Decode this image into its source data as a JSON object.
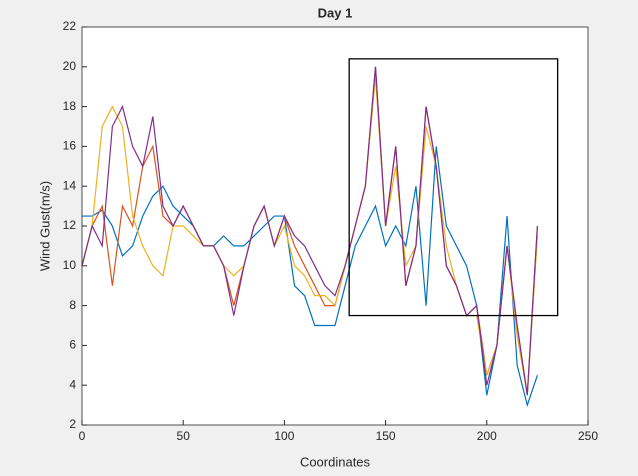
{
  "chart_data": {
    "type": "line",
    "title": "Day 1",
    "xlabel": "Coordinates",
    "ylabel": "Wind Gust(m/s)",
    "x": [
      0,
      5,
      10,
      15,
      20,
      25,
      30,
      35,
      40,
      45,
      50,
      55,
      60,
      65,
      70,
      75,
      80,
      85,
      90,
      95,
      100,
      105,
      110,
      115,
      120,
      125,
      130,
      135,
      140,
      145,
      150,
      155,
      160,
      165,
      170,
      175,
      180,
      185,
      190,
      195,
      200,
      205,
      210,
      215,
      220,
      225
    ],
    "series": [
      {
        "color": "#0072bd",
        "values": [
          12.5,
          12.5,
          12.8,
          12,
          10.5,
          11,
          12.5,
          13.5,
          14,
          13,
          12.5,
          12,
          11,
          11,
          11.5,
          11,
          11,
          11.5,
          12,
          12.5,
          12.5,
          9,
          8.5,
          7,
          7,
          7,
          9,
          11,
          12,
          13,
          11,
          12,
          11,
          14,
          8,
          16,
          12,
          11,
          10,
          8,
          3.5,
          6,
          12.5,
          5,
          3,
          4.5
        ]
      },
      {
        "color": "#d95319",
        "values": [
          10,
          12,
          13,
          9,
          13,
          12,
          15,
          16,
          12.5,
          12,
          13,
          12,
          11,
          11,
          10,
          8,
          10,
          12,
          13,
          11,
          12.5,
          11,
          10,
          9,
          8,
          8,
          10,
          12,
          14,
          20,
          12,
          16,
          9,
          11,
          18,
          15,
          10,
          9,
          7.5,
          8,
          4.5,
          6,
          11,
          7,
          3.5,
          12
        ]
      },
      {
        "color": "#edb120",
        "values": [
          10,
          12,
          17,
          18,
          17,
          12.5,
          11,
          10,
          9.5,
          12,
          12,
          11.5,
          11,
          11,
          10,
          9.5,
          10,
          12,
          13,
          11,
          12,
          10,
          9.5,
          8.5,
          8.5,
          8,
          10,
          12,
          14,
          19.5,
          12,
          15,
          10,
          11,
          17,
          15,
          11,
          9,
          7.5,
          7.5,
          4.5,
          6,
          11,
          6.5,
          3.5,
          11.5
        ]
      },
      {
        "color": "#7e2f8e",
        "values": [
          10,
          12,
          11,
          17,
          18,
          16,
          15,
          17.5,
          13,
          12,
          13,
          12,
          11,
          11,
          10,
          7.5,
          10,
          12,
          13,
          11,
          12.5,
          11.5,
          11,
          10,
          9,
          8.5,
          10,
          12,
          14,
          20,
          12,
          16,
          9,
          11,
          18,
          15,
          10,
          9,
          7.5,
          8,
          4,
          6,
          11,
          7,
          3.5,
          12
        ]
      }
    ],
    "highlight_box": {
      "xlim": [
        132,
        235
      ],
      "ylim": [
        7.5,
        20.4
      ]
    },
    "xlim": [
      0,
      250
    ],
    "xticks": [
      0,
      50,
      100,
      150,
      200,
      250
    ],
    "ylim": [
      2,
      22
    ],
    "yticks": [
      2,
      4,
      6,
      8,
      10,
      12,
      14,
      16,
      18,
      20,
      22
    ]
  }
}
